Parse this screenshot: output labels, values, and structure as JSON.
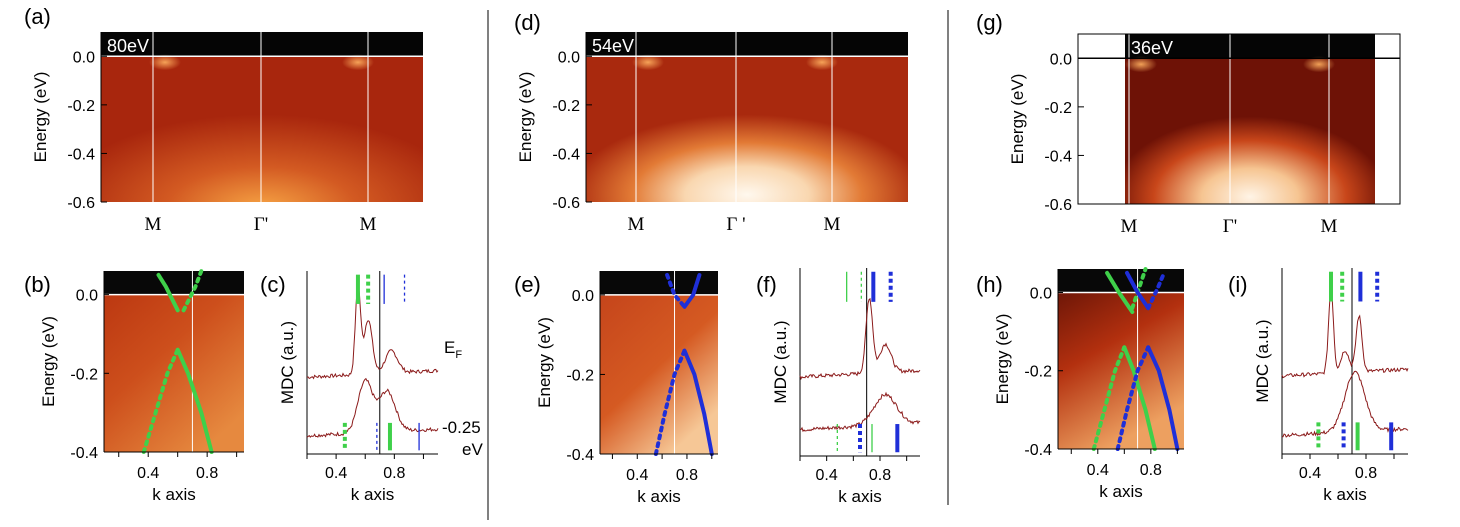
{
  "chart_data": {
    "type": "arpes_panel_figure",
    "colors": {
      "band_green": "#3fd04a",
      "band_blue": "#1f2fd8",
      "mdc_line": "#8b1a1a"
    },
    "energy_spectra": [
      {
        "id": "a",
        "panel_label": "(a)",
        "photon_label": "80eV",
        "ylabel": "Energy (eV)",
        "ylim": [
          -0.6,
          0.1
        ],
        "yticks": [
          "0.0",
          "-0.2",
          "-0.4",
          "-0.6"
        ],
        "k_labels": [
          "M",
          "Γ'",
          "M"
        ],
        "band_top_eV": -0.55
      },
      {
        "id": "d",
        "panel_label": "(d)",
        "photon_label": "54eV",
        "ylabel": "Energy (eV)",
        "ylim": [
          -0.6,
          0.1
        ],
        "yticks": [
          "0.0",
          "-0.2",
          "-0.4",
          "-0.6"
        ],
        "k_labels": [
          "M",
          "Γ '",
          "M"
        ],
        "band_top_eV": -0.3
      },
      {
        "id": "g",
        "panel_label": "(g)",
        "photon_label": "36eV",
        "ylabel": "Energy (eV)",
        "ylim": [
          -0.6,
          0.1
        ],
        "yticks": [
          "0.0",
          "-0.2",
          "-0.4",
          "-0.6"
        ],
        "k_labels": [
          "M",
          "Γ'",
          "M"
        ],
        "band_top_eV": -0.3
      }
    ],
    "zoom_spectra": [
      {
        "id": "b",
        "panel_label": "(b)",
        "ylabel": "Energy (eV)",
        "xlabel": "k axis",
        "xlim": [
          0.1,
          1.05
        ],
        "ylim": [
          -0.4,
          0.06
        ],
        "xticks": [
          "0.4",
          "0.8"
        ],
        "yticks": [
          "0.0",
          "-0.2",
          "-0.4"
        ],
        "vline_k": 0.7,
        "bands": [
          {
            "color": "green",
            "style": "solid",
            "points": [
              [
                0.47,
                0.05
              ],
              [
                0.52,
                0.02
              ],
              [
                0.6,
                -0.04
              ]
            ]
          },
          {
            "color": "green",
            "style": "dotted",
            "points": [
              [
                0.64,
                -0.04
              ],
              [
                0.72,
                0.02
              ],
              [
                0.76,
                0.06
              ]
            ]
          },
          {
            "color": "green",
            "style": "dotted",
            "points": [
              [
                0.37,
                -0.4
              ],
              [
                0.45,
                -0.3
              ],
              [
                0.53,
                -0.2
              ],
              [
                0.6,
                -0.14
              ]
            ]
          },
          {
            "color": "green",
            "style": "solid",
            "points": [
              [
                0.6,
                -0.14
              ],
              [
                0.67,
                -0.2
              ],
              [
                0.76,
                -0.3
              ],
              [
                0.83,
                -0.4
              ]
            ]
          }
        ]
      },
      {
        "id": "e",
        "panel_label": "(e)",
        "ylabel": "Energy (eV)",
        "xlabel": "k axis",
        "xlim": [
          0.1,
          1.05
        ],
        "ylim": [
          -0.4,
          0.06
        ],
        "xticks": [
          "0.4",
          "0.8"
        ],
        "yticks": [
          "0.0",
          "-0.2",
          "-0.4"
        ],
        "vline_k": 0.7,
        "bands": [
          {
            "color": "blue",
            "style": "dotted",
            "points": [
              [
                0.64,
                0.05
              ],
              [
                0.7,
                0.0
              ],
              [
                0.78,
                -0.03
              ]
            ]
          },
          {
            "color": "blue",
            "style": "solid",
            "points": [
              [
                0.78,
                -0.03
              ],
              [
                0.85,
                0.0
              ],
              [
                0.9,
                0.05
              ]
            ]
          },
          {
            "color": "blue",
            "style": "dotted",
            "points": [
              [
                0.55,
                -0.4
              ],
              [
                0.62,
                -0.3
              ],
              [
                0.7,
                -0.2
              ],
              [
                0.78,
                -0.14
              ]
            ]
          },
          {
            "color": "blue",
            "style": "solid",
            "points": [
              [
                0.78,
                -0.14
              ],
              [
                0.86,
                -0.2
              ],
              [
                0.94,
                -0.3
              ],
              [
                1.0,
                -0.4
              ]
            ]
          }
        ]
      },
      {
        "id": "h",
        "panel_label": "(h)",
        "ylabel": "Energy (eV)",
        "xlabel": "k axis",
        "xlim": [
          0.1,
          1.05
        ],
        "ylim": [
          -0.4,
          0.06
        ],
        "xticks": [
          "0.4",
          "0.8"
        ],
        "yticks": [
          "0.0",
          "-0.2",
          "-0.4"
        ],
        "vline_k": 0.7,
        "bands": [
          {
            "color": "green",
            "style": "solid",
            "points": [
              [
                0.47,
                0.05
              ],
              [
                0.56,
                0.0
              ],
              [
                0.66,
                -0.05
              ]
            ]
          },
          {
            "color": "green",
            "style": "dotted",
            "points": [
              [
                0.66,
                -0.04
              ],
              [
                0.72,
                0.02
              ],
              [
                0.76,
                0.06
              ]
            ]
          },
          {
            "color": "blue",
            "style": "solid",
            "points": [
              [
                0.62,
                0.05
              ],
              [
                0.7,
                0.0
              ],
              [
                0.78,
                -0.04
              ]
            ]
          },
          {
            "color": "blue",
            "style": "dotted",
            "points": [
              [
                0.78,
                -0.04
              ],
              [
                0.85,
                0.01
              ],
              [
                0.9,
                0.05
              ]
            ]
          },
          {
            "color": "green",
            "style": "dotted",
            "points": [
              [
                0.37,
                -0.4
              ],
              [
                0.45,
                -0.3
              ],
              [
                0.53,
                -0.2
              ],
              [
                0.6,
                -0.14
              ]
            ]
          },
          {
            "color": "green",
            "style": "solid",
            "points": [
              [
                0.6,
                -0.14
              ],
              [
                0.67,
                -0.2
              ],
              [
                0.76,
                -0.3
              ],
              [
                0.83,
                -0.4
              ]
            ]
          },
          {
            "color": "blue",
            "style": "dotted",
            "points": [
              [
                0.55,
                -0.4
              ],
              [
                0.62,
                -0.3
              ],
              [
                0.7,
                -0.2
              ],
              [
                0.78,
                -0.14
              ]
            ]
          },
          {
            "color": "blue",
            "style": "solid",
            "points": [
              [
                0.78,
                -0.14
              ],
              [
                0.86,
                -0.2
              ],
              [
                0.94,
                -0.3
              ],
              [
                1.0,
                -0.4
              ]
            ]
          }
        ]
      }
    ],
    "mdc_panels": [
      {
        "id": "c",
        "panel_label": "(c)",
        "ylabel": "MDC (a.u.)",
        "xlabel": "k axis",
        "xlim": [
          0.2,
          1.1
        ],
        "xticks": [
          "0.4",
          "0.8"
        ],
        "vline_k": 0.7,
        "curve_labels": [
          "E",
          "-0.25",
          "eV"
        ],
        "curve_sub": "F",
        "curves": [
          {
            "baseline": 0.42,
            "peaks": [
              [
                0.55,
                0.48,
                0.025
              ],
              [
                0.62,
                0.3,
                0.04
              ],
              [
                0.78,
                0.12,
                0.06
              ]
            ]
          },
          {
            "baseline": 0.1,
            "peaks": [
              [
                0.6,
                0.28,
                0.07
              ],
              [
                0.75,
                0.22,
                0.08
              ]
            ]
          }
        ],
        "markers": [
          {
            "row": "top",
            "k": 0.55,
            "color": "green",
            "style": "solid",
            "weight": "thick"
          },
          {
            "row": "top",
            "k": 0.62,
            "color": "green",
            "style": "dotted",
            "weight": "thick"
          },
          {
            "row": "top",
            "k": 0.73,
            "color": "blue",
            "style": "solid",
            "weight": "thin"
          },
          {
            "row": "top",
            "k": 0.87,
            "color": "blue",
            "style": "dotted",
            "weight": "thin"
          },
          {
            "row": "bottom",
            "k": 0.46,
            "color": "green",
            "style": "dotted",
            "weight": "thick"
          },
          {
            "row": "bottom",
            "k": 0.68,
            "color": "blue",
            "style": "dotted",
            "weight": "thin"
          },
          {
            "row": "bottom",
            "k": 0.77,
            "color": "green",
            "style": "solid",
            "weight": "thick"
          },
          {
            "row": "bottom",
            "k": 0.97,
            "color": "blue",
            "style": "solid",
            "weight": "thin"
          }
        ]
      },
      {
        "id": "f",
        "panel_label": "(f)",
        "ylabel": "MDC (a.u.)",
        "xlabel": "k axis",
        "xlim": [
          0.2,
          1.1
        ],
        "xticks": [
          "0.4",
          "0.8"
        ],
        "vline_k": 0.7,
        "curves": [
          {
            "baseline": 0.42,
            "peaks": [
              [
                0.72,
                0.4,
                0.035
              ],
              [
                0.84,
                0.15,
                0.06
              ]
            ]
          },
          {
            "baseline": 0.14,
            "peaks": [
              [
                0.84,
                0.16,
                0.12
              ]
            ]
          }
        ],
        "markers": [
          {
            "row": "top",
            "k": 0.55,
            "color": "green",
            "style": "solid",
            "weight": "thin"
          },
          {
            "row": "top",
            "k": 0.66,
            "color": "green",
            "style": "dotted",
            "weight": "thin"
          },
          {
            "row": "top",
            "k": 0.75,
            "color": "blue",
            "style": "solid",
            "weight": "thick"
          },
          {
            "row": "top",
            "k": 0.88,
            "color": "blue",
            "style": "dotted",
            "weight": "thick"
          },
          {
            "row": "bottom",
            "k": 0.48,
            "color": "green",
            "style": "dotted",
            "weight": "thin"
          },
          {
            "row": "bottom",
            "k": 0.65,
            "color": "blue",
            "style": "dotted",
            "weight": "thick"
          },
          {
            "row": "bottom",
            "k": 0.74,
            "color": "green",
            "style": "solid",
            "weight": "thin"
          },
          {
            "row": "bottom",
            "k": 0.93,
            "color": "blue",
            "style": "solid",
            "weight": "thick"
          }
        ]
      },
      {
        "id": "i",
        "panel_label": "(i)",
        "ylabel": "MDC (a.u.)",
        "xlabel": "k axis",
        "xlim": [
          0.2,
          1.1
        ],
        "xticks": [
          "0.4",
          "0.8"
        ],
        "vline_k": 0.7,
        "curves": [
          {
            "baseline": 0.42,
            "peaks": [
              [
                0.55,
                0.45,
                0.025
              ],
              [
                0.75,
                0.3,
                0.03
              ],
              [
                0.65,
                0.12,
                0.04
              ]
            ]
          },
          {
            "baseline": 0.1,
            "peaks": [
              [
                0.72,
                0.32,
                0.1
              ]
            ]
          }
        ],
        "markers": [
          {
            "row": "top",
            "k": 0.55,
            "color": "green",
            "style": "solid",
            "weight": "thick"
          },
          {
            "row": "top",
            "k": 0.63,
            "color": "green",
            "style": "dotted",
            "weight": "thick"
          },
          {
            "row": "top",
            "k": 0.76,
            "color": "blue",
            "style": "solid",
            "weight": "thick"
          },
          {
            "row": "top",
            "k": 0.88,
            "color": "blue",
            "style": "dotted",
            "weight": "thick"
          },
          {
            "row": "bottom",
            "k": 0.46,
            "color": "green",
            "style": "dotted",
            "weight": "thick"
          },
          {
            "row": "bottom",
            "k": 0.64,
            "color": "blue",
            "style": "dotted",
            "weight": "thick"
          },
          {
            "row": "bottom",
            "k": 0.74,
            "color": "green",
            "style": "solid",
            "weight": "thick"
          },
          {
            "row": "bottom",
            "k": 0.98,
            "color": "blue",
            "style": "solid",
            "weight": "thick"
          }
        ]
      }
    ]
  }
}
